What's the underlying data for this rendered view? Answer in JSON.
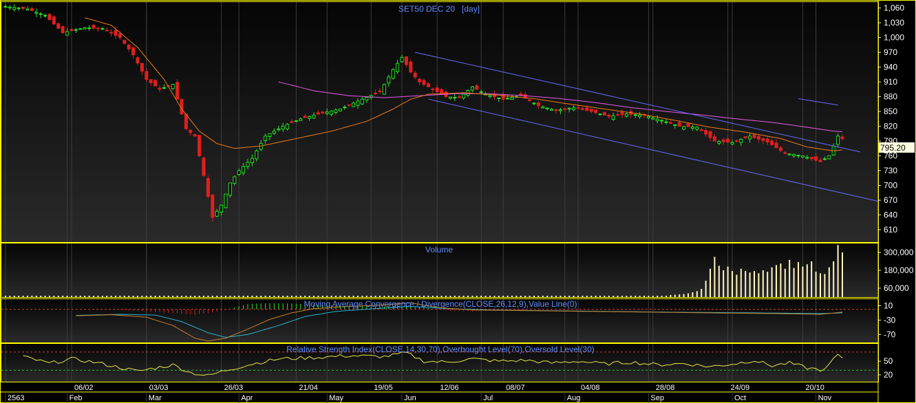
{
  "window": {
    "border_color": "#ffff00"
  },
  "colors": {
    "background": "#000000",
    "grid": "#3c3c3c",
    "panel_border": "#ffff00",
    "title_text": "#5f8cff",
    "axis_text": "#ffffff",
    "up_candle": "#29e629",
    "down_candle": "#e01f1f",
    "ma_fast": "#f07a18",
    "ma_slow": "#e85ae8",
    "channel": "#6a6aff",
    "volume_bar": "#fff6c0",
    "macd_line": "#c8822d",
    "signal_line": "#27b5d6",
    "rsi_line": "#e6e64a",
    "overbought": "#d43a3a",
    "oversold": "#2bbf2b",
    "price_badge_bg": "#fffde0"
  },
  "chart_data": [
    {
      "type": "candlestick",
      "title": "SET50 DEC 20   [day]",
      "yticks": [
        "1,060",
        "1,030",
        "1,000",
        "970",
        "940",
        "910",
        "880",
        "850",
        "820",
        "790",
        "760",
        "730",
        "700",
        "670",
        "640",
        "610"
      ],
      "ylim": [
        585,
        1072
      ],
      "last_price": "795.20",
      "xlabels_top": [
        "06/02",
        "03/03",
        "26/03",
        "21/04",
        "19/05",
        "12/06",
        "08/07",
        "04/08",
        "28/08",
        "24/09",
        "20/10"
      ],
      "xlabels_bottom": [
        "2563",
        "Feb",
        "Mar",
        "Apr",
        "May",
        "Jun",
        "Jul",
        "Aug",
        "Sep",
        "Oct",
        "Nov"
      ],
      "close_keypoints": [
        [
          0,
          1063
        ],
        [
          5,
          1058
        ],
        [
          9,
          1045
        ],
        [
          13,
          1010
        ],
        [
          18,
          1020
        ],
        [
          22,
          1018
        ],
        [
          26,
          1000
        ],
        [
          29,
          965
        ],
        [
          32,
          915
        ],
        [
          35,
          895
        ],
        [
          38,
          905
        ],
        [
          41,
          815
        ],
        [
          43,
          800
        ],
        [
          44,
          760
        ],
        [
          45,
          720
        ],
        [
          47,
          635
        ],
        [
          49,
          660
        ],
        [
          51,
          705
        ],
        [
          53,
          730
        ],
        [
          56,
          755
        ],
        [
          59,
          800
        ],
        [
          63,
          820
        ],
        [
          67,
          835
        ],
        [
          71,
          845
        ],
        [
          76,
          855
        ],
        [
          81,
          875
        ],
        [
          85,
          890
        ],
        [
          88,
          935
        ],
        [
          90,
          960
        ],
        [
          92,
          930
        ],
        [
          94,
          910
        ],
        [
          97,
          895
        ],
        [
          100,
          880
        ],
        [
          103,
          878
        ],
        [
          106,
          900
        ],
        [
          109,
          885
        ],
        [
          113,
          875
        ],
        [
          117,
          882
        ],
        [
          121,
          862
        ],
        [
          125,
          852
        ],
        [
          129,
          858
        ],
        [
          133,
          850
        ],
        [
          137,
          840
        ],
        [
          141,
          845
        ],
        [
          145,
          842
        ],
        [
          149,
          832
        ],
        [
          153,
          820
        ],
        [
          157,
          818
        ],
        [
          161,
          790
        ],
        [
          165,
          787
        ],
        [
          169,
          800
        ],
        [
          173,
          788
        ],
        [
          177,
          765
        ],
        [
          181,
          760
        ],
        [
          185,
          748
        ],
        [
          187,
          760
        ],
        [
          189,
          800
        ],
        [
          190,
          795
        ]
      ],
      "ma_fast_keypoints": [
        [
          18,
          1040
        ],
        [
          24,
          1025
        ],
        [
          30,
          980
        ],
        [
          36,
          915
        ],
        [
          40,
          855
        ],
        [
          44,
          810
        ],
        [
          48,
          785
        ],
        [
          52,
          775
        ],
        [
          58,
          780
        ],
        [
          66,
          795
        ],
        [
          74,
          810
        ],
        [
          82,
          830
        ],
        [
          88,
          855
        ],
        [
          92,
          875
        ],
        [
          96,
          885
        ],
        [
          104,
          888
        ],
        [
          112,
          883
        ],
        [
          120,
          876
        ],
        [
          128,
          865
        ],
        [
          136,
          855
        ],
        [
          144,
          845
        ],
        [
          152,
          832
        ],
        [
          160,
          818
        ],
        [
          168,
          808
        ],
        [
          176,
          795
        ],
        [
          182,
          778
        ],
        [
          188,
          770
        ],
        [
          190,
          772
        ]
      ],
      "ma_slow_keypoints": [
        [
          62,
          910
        ],
        [
          70,
          892
        ],
        [
          78,
          882
        ],
        [
          86,
          878
        ],
        [
          94,
          882
        ],
        [
          102,
          886
        ],
        [
          110,
          886
        ],
        [
          118,
          882
        ],
        [
          126,
          876
        ],
        [
          134,
          868
        ],
        [
          142,
          858
        ],
        [
          150,
          850
        ],
        [
          158,
          843
        ],
        [
          166,
          835
        ],
        [
          174,
          828
        ],
        [
          182,
          818
        ],
        [
          188,
          810
        ],
        [
          190,
          809
        ]
      ],
      "annotations": [
        {
          "kind": "channel_upper",
          "x1": 93,
          "y1": 970,
          "x2": 194,
          "y2": 768
        },
        {
          "kind": "channel_lower",
          "x1": 96,
          "y1": 875,
          "x2": 200,
          "y2": 664
        },
        {
          "kind": "short_line",
          "x1": 180,
          "y1": 876,
          "x2": 189,
          "y2": 863
        }
      ]
    },
    {
      "type": "bar",
      "title": "Volume",
      "yticks": [
        "300,000",
        "180,000",
        "60,000"
      ],
      "ylim": [
        0,
        360000
      ],
      "base_volume": 9000,
      "late_volumes": [
        [
          151,
          14000
        ],
        [
          152,
          16000
        ],
        [
          153,
          18000
        ],
        [
          154,
          20000
        ],
        [
          155,
          25000
        ],
        [
          156,
          32000
        ],
        [
          157,
          40000
        ],
        [
          158,
          55000
        ],
        [
          159,
          110000
        ],
        [
          160,
          190000
        ],
        [
          161,
          270000
        ],
        [
          162,
          210000
        ],
        [
          163,
          180000
        ],
        [
          164,
          205000
        ],
        [
          165,
          175000
        ],
        [
          166,
          150000
        ],
        [
          167,
          190000
        ],
        [
          168,
          175000
        ],
        [
          169,
          165000
        ],
        [
          170,
          175000
        ],
        [
          171,
          160000
        ],
        [
          172,
          180000
        ],
        [
          173,
          170000
        ],
        [
          174,
          200000
        ],
        [
          175,
          215000
        ],
        [
          176,
          225000
        ],
        [
          177,
          190000
        ],
        [
          178,
          250000
        ],
        [
          179,
          195000
        ],
        [
          180,
          235000
        ],
        [
          181,
          205000
        ],
        [
          182,
          220000
        ],
        [
          183,
          240000
        ],
        [
          184,
          170000
        ],
        [
          185,
          160000
        ],
        [
          186,
          155000
        ],
        [
          187,
          200000
        ],
        [
          188,
          240000
        ],
        [
          189,
          350000
        ],
        [
          190,
          300000
        ]
      ]
    },
    {
      "type": "line",
      "title": "Moving Average Convergence / Divergence(CLOSE,26,12,9),Value Line(0)",
      "yticks": [
        "10",
        "-30",
        "-70"
      ],
      "ylim": [
        -92,
        28
      ],
      "macd_keypoints": [
        [
          16,
          -18
        ],
        [
          24,
          -15
        ],
        [
          32,
          -22
        ],
        [
          38,
          -45
        ],
        [
          43,
          -80
        ],
        [
          46,
          -88
        ],
        [
          50,
          -80
        ],
        [
          55,
          -55
        ],
        [
          60,
          -28
        ],
        [
          65,
          -10
        ],
        [
          70,
          2
        ],
        [
          78,
          8
        ],
        [
          86,
          12
        ],
        [
          92,
          18
        ],
        [
          98,
          5
        ],
        [
          106,
          -2
        ],
        [
          120,
          -4
        ],
        [
          140,
          -7
        ],
        [
          160,
          -10
        ],
        [
          175,
          -12
        ],
        [
          185,
          -14
        ],
        [
          190,
          -8
        ]
      ],
      "signal_keypoints": [
        [
          16,
          -17
        ],
        [
          26,
          -14
        ],
        [
          34,
          -16
        ],
        [
          40,
          -34
        ],
        [
          46,
          -65
        ],
        [
          50,
          -78
        ],
        [
          55,
          -70
        ],
        [
          62,
          -45
        ],
        [
          68,
          -20
        ],
        [
          75,
          -6
        ],
        [
          84,
          2
        ],
        [
          92,
          8
        ],
        [
          100,
          2
        ],
        [
          110,
          -2
        ],
        [
          130,
          -5
        ],
        [
          150,
          -8
        ],
        [
          170,
          -10
        ],
        [
          185,
          -12
        ],
        [
          190,
          -10
        ]
      ],
      "hist_keypoints": [
        [
          16,
          -1
        ],
        [
          24,
          -1
        ],
        [
          32,
          -6
        ],
        [
          38,
          -11
        ],
        [
          43,
          -15
        ],
        [
          46,
          -10
        ],
        [
          50,
          -2
        ],
        [
          55,
          15
        ],
        [
          60,
          17
        ],
        [
          65,
          16
        ],
        [
          70,
          13
        ],
        [
          78,
          9
        ],
        [
          86,
          8
        ],
        [
          92,
          10
        ],
        [
          96,
          3
        ],
        [
          100,
          -4
        ],
        [
          106,
          -6
        ],
        [
          110,
          -3
        ],
        [
          120,
          -1
        ],
        [
          190,
          -1
        ]
      ]
    },
    {
      "type": "line",
      "title": "Relative Strength Index(CLOSE,14,30,70),Overbought Level(70),Oversold Level(30)",
      "yticks": [
        "50",
        "20"
      ],
      "ylim": [
        5,
        88
      ],
      "overbought": 70,
      "oversold": 30,
      "rsi_keypoints": [
        [
          4,
          60
        ],
        [
          10,
          45
        ],
        [
          15,
          55
        ],
        [
          20,
          48
        ],
        [
          26,
          36
        ],
        [
          30,
          28
        ],
        [
          34,
          35
        ],
        [
          38,
          42
        ],
        [
          42,
          25
        ],
        [
          46,
          18
        ],
        [
          50,
          30
        ],
        [
          56,
          44
        ],
        [
          62,
          55
        ],
        [
          70,
          58
        ],
        [
          78,
          62
        ],
        [
          86,
          60
        ],
        [
          91,
          68
        ],
        [
          95,
          50
        ],
        [
          100,
          48
        ],
        [
          106,
          55
        ],
        [
          112,
          50
        ],
        [
          118,
          52
        ],
        [
          124,
          46
        ],
        [
          130,
          50
        ],
        [
          136,
          44
        ],
        [
          142,
          48
        ],
        [
          148,
          42
        ],
        [
          154,
          45
        ],
        [
          160,
          38
        ],
        [
          166,
          45
        ],
        [
          170,
          52
        ],
        [
          174,
          40
        ],
        [
          178,
          46
        ],
        [
          182,
          35
        ],
        [
          186,
          30
        ],
        [
          188,
          55
        ],
        [
          189,
          62
        ],
        [
          190,
          58
        ]
      ]
    }
  ]
}
